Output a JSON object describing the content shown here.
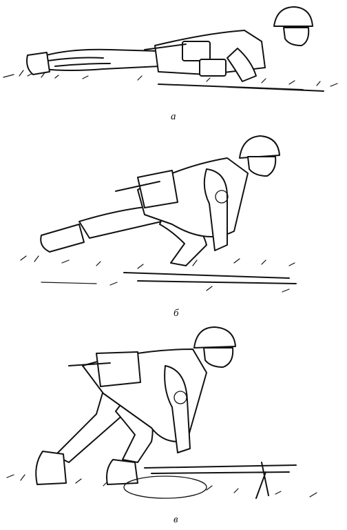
{
  "figure": {
    "panels": [
      {
        "id": "a",
        "caption": "а"
      },
      {
        "id": "b",
        "caption": "б"
      },
      {
        "id": "v",
        "caption": "в"
      }
    ]
  }
}
